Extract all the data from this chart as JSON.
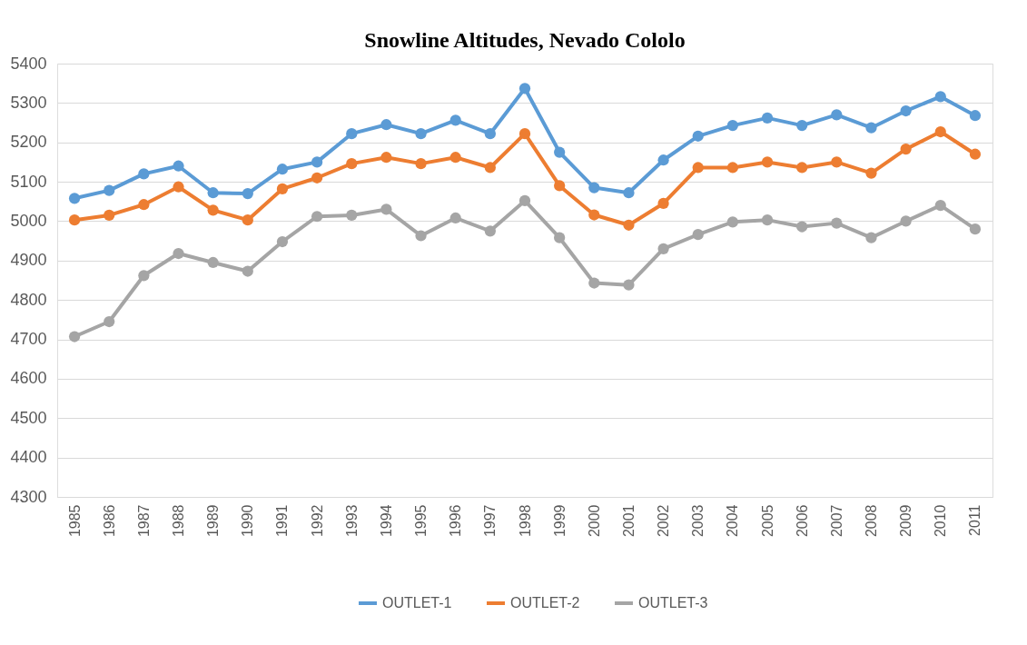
{
  "chart_data": {
    "type": "line",
    "title": "Snowline Altitudes, Nevado Cololo",
    "categories": [
      "1985",
      "1986",
      "1987",
      "1988",
      "1989",
      "1990",
      "1991",
      "1992",
      "1993",
      "1994",
      "1995",
      "1996",
      "1997",
      "1998",
      "1999",
      "2000",
      "2001",
      "2002",
      "2003",
      "2004",
      "2005",
      "2006",
      "2007",
      "2008",
      "2009",
      "2010",
      "2011"
    ],
    "series": [
      {
        "name": "OUTLET-1",
        "color": "#5b9bd5",
        "values": [
          5058,
          5078,
          5120,
          5140,
          5072,
          5070,
          5132,
          5150,
          5222,
          5245,
          5222,
          5256,
          5222,
          5337,
          5175,
          5085,
          5072,
          5155,
          5216,
          5243,
          5262,
          5243,
          5270,
          5237,
          5280,
          5316,
          5268
        ]
      },
      {
        "name": "OUTLET-2",
        "color": "#ed7d31",
        "values": [
          5003,
          5015,
          5042,
          5087,
          5028,
          5003,
          5082,
          5110,
          5146,
          5162,
          5146,
          5162,
          5136,
          5222,
          5090,
          5016,
          4990,
          5045,
          5136,
          5136,
          5150,
          5136,
          5150,
          5122,
          5183,
          5227,
          5170
        ]
      },
      {
        "name": "OUTLET-3",
        "color": "#a5a5a5",
        "values": [
          4707,
          4745,
          4862,
          4918,
          4895,
          4873,
          4948,
          5012,
          5015,
          5030,
          4963,
          5008,
          4975,
          5052,
          4958,
          4843,
          4838,
          4930,
          4966,
          4998,
          5003,
          4986,
          4995,
          4958,
          5000,
          5040,
          4980
        ]
      }
    ],
    "ylim": [
      4300,
      5400
    ],
    "yticks": [
      4300,
      4400,
      4500,
      4600,
      4700,
      4800,
      4900,
      5000,
      5100,
      5200,
      5300,
      5400
    ],
    "grid": "y",
    "legend": "bottom",
    "marker": "circle",
    "line_style": "solid"
  }
}
